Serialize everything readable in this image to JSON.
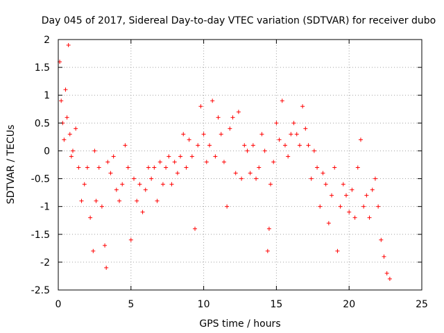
{
  "chart_data": {
    "type": "scatter",
    "title": "Day 045 of 2017, Sidereal Day-to-day VTEC variation (SDTVAR) for receiver dubo",
    "xlabel": "GPS time / hours",
    "ylabel": "SDTVAR / TECUs",
    "xlim": [
      0,
      25
    ],
    "ylim": [
      -2.5,
      2
    ],
    "xticks": [
      0,
      5,
      10,
      15,
      20,
      25
    ],
    "xtick_labels": [
      "0",
      "5",
      "10",
      "15",
      "20",
      "25"
    ],
    "yticks": [
      2,
      1.5,
      1,
      0.5,
      0,
      -0.5,
      -1,
      -1.5,
      -2,
      -2.5
    ],
    "ytick_labels": [
      "2",
      "1.5",
      "1",
      "0.5",
      "0",
      "-0.5",
      "-1",
      "-1.5",
      "-2",
      "-2.5"
    ],
    "grid": true,
    "marker": "plus",
    "marker_color": "#ff0000",
    "series": [
      {
        "name": "SDTVAR",
        "x": [
          0.1,
          0.2,
          0.3,
          0.4,
          0.5,
          0.6,
          0.7,
          0.8,
          0.9,
          1.0,
          1.2,
          1.4,
          1.6,
          1.8,
          2.0,
          2.2,
          2.4,
          2.5,
          2.6,
          2.8,
          3.0,
          3.2,
          3.3,
          3.4,
          3.6,
          3.8,
          4.0,
          4.2,
          4.4,
          4.6,
          4.8,
          5.0,
          5.2,
          5.4,
          5.6,
          5.8,
          6.0,
          6.2,
          6.4,
          6.6,
          6.8,
          7.0,
          7.2,
          7.4,
          7.6,
          7.8,
          8.0,
          8.2,
          8.4,
          8.6,
          8.8,
          9.0,
          9.2,
          9.4,
          9.6,
          9.8,
          10.0,
          10.2,
          10.4,
          10.6,
          10.8,
          11.0,
          11.2,
          11.4,
          11.6,
          11.8,
          12.0,
          12.2,
          12.4,
          12.6,
          12.8,
          13.0,
          13.2,
          13.4,
          13.6,
          13.8,
          14.0,
          14.2,
          14.4,
          14.5,
          14.6,
          14.8,
          15.0,
          15.2,
          15.4,
          15.6,
          15.8,
          16.0,
          16.2,
          16.4,
          16.6,
          16.8,
          17.0,
          17.2,
          17.4,
          17.6,
          17.8,
          18.0,
          18.2,
          18.4,
          18.6,
          18.8,
          19.0,
          19.2,
          19.4,
          19.6,
          19.8,
          20.0,
          20.2,
          20.4,
          20.6,
          20.8,
          21.0,
          21.2,
          21.4,
          21.6,
          21.8,
          22.0,
          22.2,
          22.4,
          22.6,
          22.8
        ],
        "y": [
          1.6,
          0.9,
          0.5,
          0.2,
          1.1,
          0.6,
          1.9,
          0.3,
          -0.1,
          0.0,
          0.4,
          -0.3,
          -0.9,
          -0.6,
          -0.3,
          -1.2,
          -1.8,
          0.0,
          -0.9,
          -0.3,
          -1.0,
          -1.7,
          -2.1,
          -0.2,
          -0.4,
          -0.1,
          -0.7,
          -0.9,
          -0.6,
          0.1,
          -0.3,
          -1.6,
          -0.5,
          -0.9,
          -0.6,
          -1.1,
          -0.7,
          -0.3,
          -0.5,
          -0.3,
          -0.9,
          -0.2,
          -0.6,
          -0.3,
          -0.1,
          -0.6,
          -0.2,
          -0.4,
          -0.1,
          0.3,
          -0.3,
          0.2,
          -0.1,
          -1.4,
          0.1,
          0.8,
          0.3,
          -0.2,
          0.1,
          0.9,
          -0.1,
          0.6,
          0.3,
          -0.2,
          -1.0,
          0.4,
          0.6,
          -0.4,
          0.7,
          -0.5,
          0.1,
          0.0,
          -0.4,
          0.1,
          -0.5,
          -0.3,
          0.3,
          0.0,
          -1.8,
          -1.4,
          -0.6,
          -0.2,
          0.5,
          0.2,
          0.9,
          0.1,
          -0.1,
          0.3,
          0.5,
          0.3,
          0.1,
          0.8,
          0.4,
          0.1,
          -0.5,
          0.0,
          -0.3,
          -1.0,
          -0.4,
          -0.6,
          -1.3,
          -0.8,
          -0.3,
          -1.8,
          -1.0,
          -0.6,
          -0.8,
          -1.1,
          -0.7,
          -1.2,
          -0.3,
          0.2,
          -1.0,
          -0.8,
          -1.2,
          -0.7,
          -0.5,
          -1.0,
          -1.6,
          -1.9,
          -2.2,
          -2.3
        ]
      }
    ]
  }
}
